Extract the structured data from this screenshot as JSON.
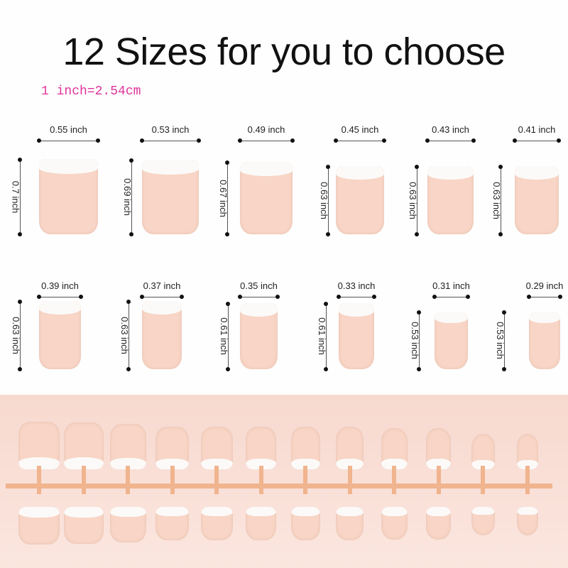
{
  "title": "12 Sizes for you to choose",
  "conversion_note": "1 inch=2.54cm",
  "colors": {
    "title": "#111111",
    "conversion_note": "#e0339b",
    "nail_body": "#f8d5c6",
    "nail_tip": "#fbfaf8",
    "tray_background": "#f7d9cf",
    "tray_bar": "#f0b48e"
  },
  "sizes": [
    {
      "width": "0.55 inch",
      "height": "0.7 inch",
      "w": 0.55,
      "h": 0.7
    },
    {
      "width": "0.53 inch",
      "height": "0.69 inch",
      "w": 0.53,
      "h": 0.69
    },
    {
      "width": "0.49 inch",
      "height": "0.67 inch",
      "w": 0.49,
      "h": 0.67
    },
    {
      "width": "0.45 inch",
      "height": "0.63 inch",
      "w": 0.45,
      "h": 0.63
    },
    {
      "width": "0.43 inch",
      "height": "0.63 inch",
      "w": 0.43,
      "h": 0.63
    },
    {
      "width": "0.41 inch",
      "height": "0.63 inch",
      "w": 0.41,
      "h": 0.63
    },
    {
      "width": "0.39 inch",
      "height": "0.63 inch",
      "w": 0.39,
      "h": 0.63
    },
    {
      "width": "0.37 inch",
      "height": "0.63 inch",
      "w": 0.37,
      "h": 0.63
    },
    {
      "width": "0.35 inch",
      "height": "0.61 inch",
      "w": 0.35,
      "h": 0.61
    },
    {
      "width": "0.33 inch",
      "height": "0.61 inch",
      "w": 0.33,
      "h": 0.61
    },
    {
      "width": "0.31 inch",
      "height": "0.53 inch",
      "w": 0.31,
      "h": 0.53
    },
    {
      "width": "0.29 inch",
      "height": "0.53 inch",
      "w": 0.29,
      "h": 0.53
    }
  ]
}
